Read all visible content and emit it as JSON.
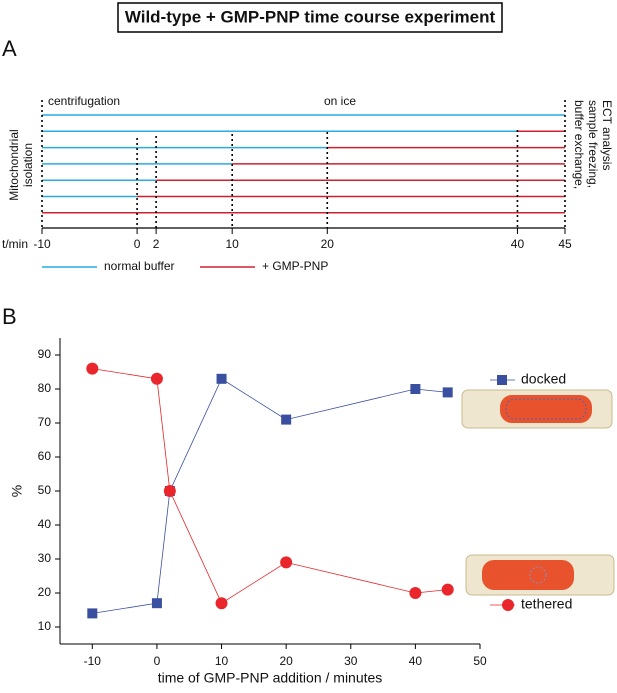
{
  "title": "Wild-type + GMP-PNP time course experiment",
  "panel_a": {
    "label": "A",
    "phase_labels": [
      "centrifugation",
      "on ice"
    ],
    "left_label": [
      "Mitochondrial",
      "isolation"
    ],
    "right_label": [
      "buffer exchange,",
      "sample freezing,",
      "ECT analysis"
    ],
    "axis_label": "t/min",
    "xlim": [
      -10,
      45
    ],
    "xticks": [
      -10,
      0,
      2,
      10,
      20,
      40,
      45
    ],
    "row_switch_times": [
      null,
      40,
      20,
      10,
      2,
      0,
      -10
    ],
    "legend": [
      {
        "name": "normal buffer",
        "color": "#29abe2"
      },
      {
        "name": "+ GMP-PNP",
        "color": "#d0202e"
      }
    ]
  },
  "chart_data": {
    "type": "line",
    "panel_label": "B",
    "xlabel": "time of GMP-PNP addition / minutes",
    "ylabel": "%",
    "x": [
      -10,
      0,
      2,
      10,
      20,
      40,
      45
    ],
    "series": [
      {
        "name": "docked",
        "color": "#3a4fa0",
        "marker": "square",
        "values": [
          14,
          17,
          50,
          83,
          71,
          80,
          79
        ]
      },
      {
        "name": "tethered",
        "color": "#e8262b",
        "marker": "circle",
        "values": [
          86,
          83,
          50,
          17,
          29,
          20,
          21
        ]
      }
    ],
    "xlim": [
      -15,
      50
    ],
    "xticks": [
      -10,
      0,
      10,
      20,
      30,
      40,
      50
    ],
    "ylim": [
      5,
      95
    ],
    "yticks": [
      10,
      20,
      30,
      40,
      50,
      60,
      70,
      80,
      90
    ]
  }
}
